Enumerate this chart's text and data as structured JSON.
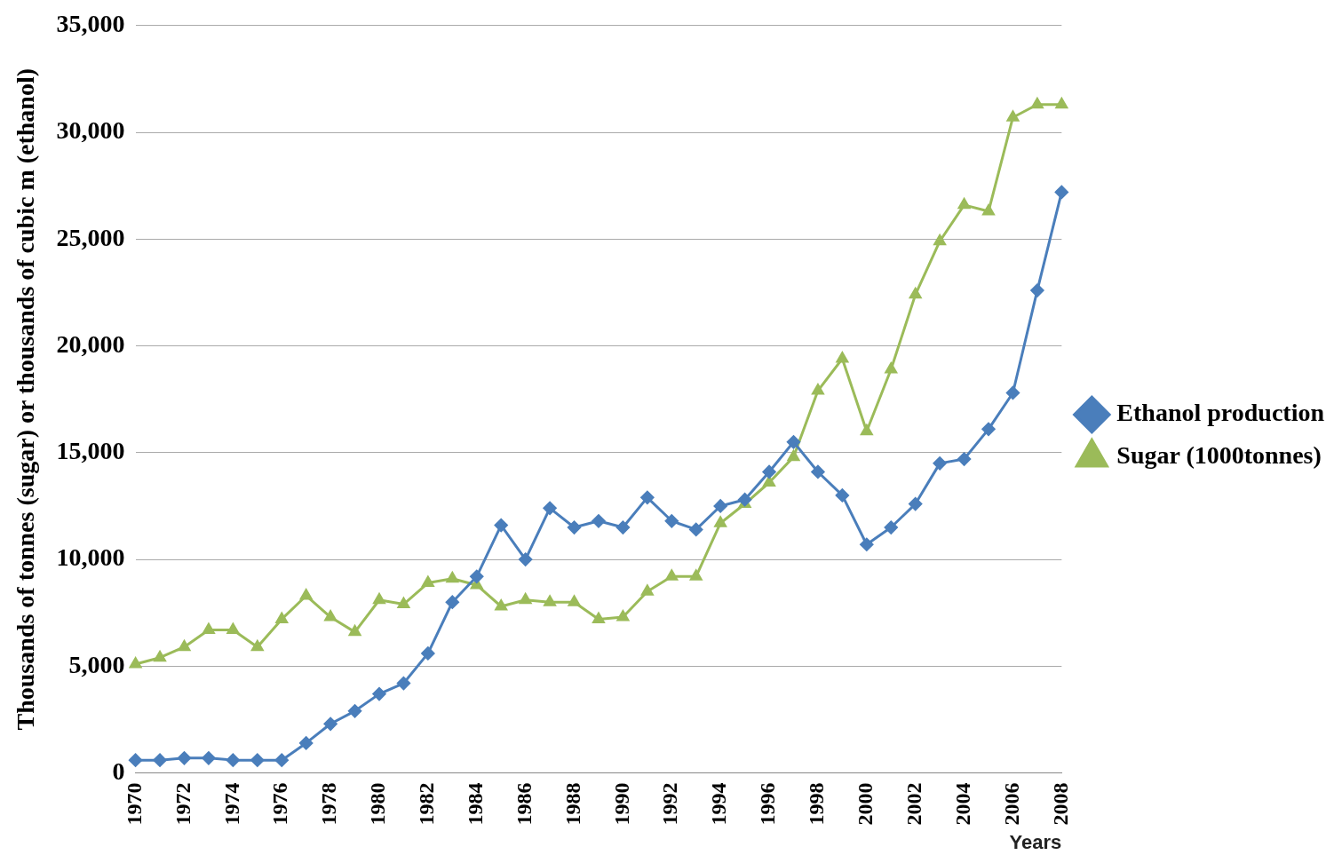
{
  "chart_data": {
    "type": "line",
    "ylabel": "Thousands of tonnes (sugar) or thousands of cubic m (ethanol)",
    "xlabel": "Years",
    "categories": [
      "1970",
      null,
      "1972",
      null,
      "1974",
      null,
      "1976",
      null,
      "1978",
      null,
      "1980",
      null,
      "1982",
      null,
      "1984",
      null,
      "1986",
      null,
      "1988",
      null,
      "1990",
      null,
      "1992",
      null,
      "1994",
      null,
      "1996",
      null,
      "1998",
      null,
      "2000",
      null,
      "2002",
      null,
      "2004",
      null,
      "2006",
      null,
      "2008"
    ],
    "series": [
      {
        "name": "Ethanol production",
        "color": "#4a7ebb",
        "marker": "diamond",
        "values": [
          600,
          600,
          700,
          700,
          600,
          600,
          600,
          1400,
          2300,
          2900,
          3700,
          4200,
          5600,
          8000,
          9200,
          11600,
          10000,
          12400,
          11500,
          11800,
          11500,
          12900,
          11800,
          11400,
          12500,
          12800,
          14100,
          15500,
          14100,
          13000,
          10700,
          11500,
          12600,
          14500,
          14700,
          16100,
          17800,
          22600,
          27200
        ]
      },
      {
        "name": "Sugar (1000tonnes)",
        "color": "#9bbb59",
        "marker": "triangle",
        "values": [
          5100,
          5400,
          5900,
          6700,
          6700,
          5900,
          7200,
          8300,
          7300,
          6600,
          8100,
          7900,
          8900,
          9100,
          8800,
          7800,
          8100,
          8000,
          8000,
          7200,
          7300,
          8500,
          9200,
          9200,
          11700,
          12600,
          13600,
          14800,
          17900,
          19400,
          16000,
          18900,
          22400,
          24900,
          26600,
          26300,
          30700,
          31300,
          31300
        ]
      }
    ],
    "ylim": [
      0,
      35000
    ],
    "yticks": [
      0,
      {
        "value": 5000,
        "label": "5,000"
      },
      {
        "value": 10000,
        "label": "10,000"
      },
      {
        "value": 15000,
        "label": "15,000"
      },
      {
        "value": 20000,
        "label": "20,000"
      },
      {
        "value": 25000,
        "label": "25,000"
      },
      {
        "value": 30000,
        "label": "30,000"
      },
      {
        "value": 35000,
        "label": "35,000"
      }
    ],
    "grid": "y",
    "legend": "right"
  }
}
